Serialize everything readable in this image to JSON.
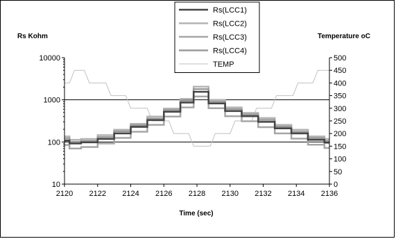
{
  "chart_data": {
    "type": "line",
    "xlabel": "Time (sec)",
    "ylabel_left": "Rs  Kohm",
    "ylabel_right": "Temperature oC",
    "x_ticks": [
      "2120",
      "2122",
      "2124",
      "2126",
      "2128",
      "2130",
      "2132",
      "2134",
      "2136"
    ],
    "y_left_ticks": [
      "10",
      "100",
      "1000",
      "10000"
    ],
    "y_right_ticks": [
      "0",
      "50",
      "100",
      "150",
      "200",
      "250",
      "300",
      "350",
      "400",
      "450",
      "500"
    ],
    "xlim": [
      2120,
      2136
    ],
    "ylim_left": [
      10,
      10000
    ],
    "y_left_scale": "log",
    "ylim_right": [
      0,
      500
    ],
    "grid": "horizontal lines at 100 and 1000 (left axis)",
    "legend_position": "top-center",
    "legend": [
      "Rs(LCC1)",
      "Rs(LCC2)",
      "Rs(LCC3)",
      "Rs(LCC4)",
      "TEMP"
    ],
    "colors": {
      "Rs(LCC1)": "#444444",
      "Rs(LCC2)": "#b4b4b4",
      "Rs(LCC3)": "#a6a6a6",
      "Rs(LCC4)": "#9a9a9a",
      "TEMP": "#c0c0c0"
    },
    "series": [
      {
        "name": "Rs(LCC1)",
        "axis": "left",
        "x": [
          2120,
          2120.3,
          2120.3,
          2121,
          2121,
          2122,
          2122,
          2123,
          2123,
          2124,
          2124,
          2125,
          2125,
          2126,
          2126,
          2127,
          2127,
          2127.8,
          2127.8,
          2128.7,
          2128.7,
          2129.7,
          2129.7,
          2130.7,
          2130.7,
          2131.7,
          2131.7,
          2132.7,
          2132.7,
          2133.7,
          2133.7,
          2134.7,
          2134.7,
          2135.7,
          2135.7,
          2136
        ],
        "y": [
          108,
          108,
          92,
          92,
          98,
          98,
          118,
          118,
          160,
          160,
          228,
          228,
          330,
          330,
          520,
          520,
          860,
          860,
          1550,
          1550,
          820,
          820,
          540,
          540,
          410,
          410,
          300,
          300,
          210,
          210,
          160,
          160,
          112,
          112,
          96,
          96
        ]
      },
      {
        "name": "Rs(LCC2)",
        "axis": "left",
        "x": [
          2120,
          2120.3,
          2120.3,
          2121,
          2121,
          2122,
          2122,
          2123,
          2123,
          2124,
          2124,
          2125,
          2125,
          2126,
          2126,
          2127,
          2127,
          2127.8,
          2127.8,
          2128.7,
          2128.7,
          2129.7,
          2129.7,
          2130.7,
          2130.7,
          2131.7,
          2131.7,
          2132.7,
          2132.7,
          2133.7,
          2133.7,
          2134.7,
          2134.7,
          2135.7,
          2135.7,
          2136
        ],
        "y": [
          135,
          135,
          112,
          112,
          118,
          118,
          145,
          145,
          195,
          195,
          270,
          270,
          400,
          400,
          620,
          620,
          1050,
          1050,
          2050,
          2050,
          1000,
          1000,
          660,
          660,
          490,
          490,
          370,
          370,
          255,
          255,
          195,
          195,
          135,
          135,
          118,
          118
        ]
      },
      {
        "name": "Rs(LCC3)",
        "axis": "left",
        "x": [
          2120,
          2120.3,
          2120.3,
          2121,
          2121,
          2122,
          2122,
          2123,
          2123,
          2124,
          2124,
          2125,
          2125,
          2126,
          2126,
          2127,
          2127,
          2127.8,
          2127.8,
          2128.7,
          2128.7,
          2129.7,
          2129.7,
          2130.7,
          2130.7,
          2131.7,
          2131.7,
          2132.7,
          2132.7,
          2133.7,
          2133.7,
          2134.7,
          2134.7,
          2135.7,
          2135.7,
          2136
        ],
        "y": [
          85,
          85,
          70,
          70,
          76,
          76,
          92,
          92,
          125,
          125,
          175,
          175,
          255,
          255,
          400,
          400,
          660,
          660,
          1200,
          1200,
          630,
          630,
          410,
          410,
          310,
          310,
          225,
          225,
          160,
          160,
          120,
          120,
          86,
          86,
          72,
          72
        ]
      },
      {
        "name": "Rs(LCC4)",
        "axis": "left",
        "x": [
          2120,
          2120.3,
          2120.3,
          2121,
          2121,
          2122,
          2122,
          2123,
          2123,
          2124,
          2124,
          2125,
          2125,
          2126,
          2126,
          2127,
          2127,
          2127.8,
          2127.8,
          2128.7,
          2128.7,
          2129.7,
          2129.7,
          2130.7,
          2130.7,
          2131.7,
          2131.7,
          2132.7,
          2132.7,
          2133.7,
          2133.7,
          2134.7,
          2134.7,
          2135.7,
          2135.7,
          2136
        ],
        "y": [
          122,
          122,
          100,
          100,
          106,
          106,
          130,
          130,
          178,
          178,
          250,
          250,
          360,
          360,
          570,
          570,
          950,
          950,
          1800,
          1800,
          900,
          900,
          600,
          600,
          450,
          450,
          335,
          335,
          232,
          232,
          175,
          175,
          124,
          124,
          106,
          106
        ]
      },
      {
        "name": "TEMP",
        "axis": "right",
        "x": [
          2120,
          2120.3,
          2120.6,
          2121.2,
          2121.5,
          2122.5,
          2122.8,
          2123.7,
          2124,
          2125,
          2125.3,
          2126.3,
          2126.6,
          2127.5,
          2127.8,
          2128.8,
          2129.1,
          2130,
          2130.3,
          2131.3,
          2131.6,
          2132.5,
          2132.8,
          2133.8,
          2134.1,
          2135,
          2135.3,
          2135.7,
          2136
        ],
        "y": [
          400,
          400,
          450,
          450,
          400,
          400,
          350,
          350,
          300,
          300,
          250,
          250,
          200,
          200,
          150,
          150,
          200,
          200,
          250,
          250,
          300,
          300,
          350,
          350,
          400,
          400,
          450,
          450,
          450
        ]
      }
    ]
  }
}
